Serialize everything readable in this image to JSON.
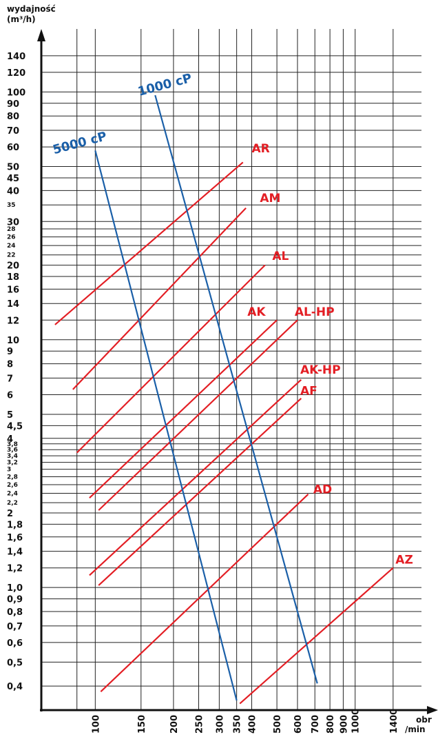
{
  "chart_data": {
    "type": "line",
    "ylabel_line1": "wydajność",
    "ylabel_line2": "(m³/h)",
    "xlabel_line1": "obr",
    "xlabel_line2": "/min",
    "y_scale": "log",
    "x_scale": "log",
    "grid": true,
    "y_ticks": [
      {
        "value": 0.4,
        "label": "0,4"
      },
      {
        "value": 0.5,
        "label": "0,5"
      },
      {
        "value": 0.6,
        "label": "0,6"
      },
      {
        "value": 0.7,
        "label": "0,7"
      },
      {
        "value": 0.8,
        "label": "0,8"
      },
      {
        "value": 0.9,
        "label": "0,9"
      },
      {
        "value": 1.0,
        "label": "1,0"
      },
      {
        "value": 1.2,
        "label": "1,2"
      },
      {
        "value": 1.4,
        "label": "1,4"
      },
      {
        "value": 1.6,
        "label": "1,6"
      },
      {
        "value": 1.8,
        "label": "1,8"
      },
      {
        "value": 2,
        "label": "2"
      },
      {
        "value": 2.2,
        "label": "2,2"
      },
      {
        "value": 2.4,
        "label": "2,4"
      },
      {
        "value": 2.6,
        "label": "2,6"
      },
      {
        "value": 2.8,
        "label": "2,8"
      },
      {
        "value": 3,
        "label": "3"
      },
      {
        "value": 3.2,
        "label": "3,2"
      },
      {
        "value": 3.4,
        "label": "3,4"
      },
      {
        "value": 3.6,
        "label": "3,6"
      },
      {
        "value": 3.8,
        "label": "3,8"
      },
      {
        "value": 4,
        "label": "4"
      },
      {
        "value": 4.5,
        "label": "4,5"
      },
      {
        "value": 5,
        "label": "5"
      },
      {
        "value": 6,
        "label": "6"
      },
      {
        "value": 7,
        "label": "7"
      },
      {
        "value": 8,
        "label": "8"
      },
      {
        "value": 9,
        "label": "9"
      },
      {
        "value": 10,
        "label": "10"
      },
      {
        "value": 12,
        "label": "12"
      },
      {
        "value": 14,
        "label": "14"
      },
      {
        "value": 16,
        "label": "16"
      },
      {
        "value": 18,
        "label": "18"
      },
      {
        "value": 20,
        "label": "20"
      },
      {
        "value": 22,
        "label": "22"
      },
      {
        "value": 24,
        "label": "24"
      },
      {
        "value": 26,
        "label": "26"
      },
      {
        "value": 28,
        "label": "28"
      },
      {
        "value": 30,
        "label": "30"
      },
      {
        "value": 35,
        "label": "35"
      },
      {
        "value": 40,
        "label": "40"
      },
      {
        "value": 45,
        "label": "45"
      },
      {
        "value": 50,
        "label": "50"
      },
      {
        "value": 60,
        "label": "60"
      },
      {
        "value": 70,
        "label": "70"
      },
      {
        "value": 80,
        "label": "80"
      },
      {
        "value": 90,
        "label": "90"
      },
      {
        "value": 100,
        "label": "100"
      },
      {
        "value": 120,
        "label": "120"
      },
      {
        "value": 140,
        "label": "140"
      }
    ],
    "x_ticks": [
      {
        "value": 100,
        "label": "100"
      },
      {
        "value": 150,
        "label": "150"
      },
      {
        "value": 200,
        "label": "200"
      },
      {
        "value": 250,
        "label": "250"
      },
      {
        "value": 300,
        "label": "300"
      },
      {
        "value": 350,
        "label": "350"
      },
      {
        "value": 400,
        "label": "400"
      },
      {
        "value": 500,
        "label": "500"
      },
      {
        "value": 600,
        "label": "600"
      },
      {
        "value": 700,
        "label": "700"
      },
      {
        "value": 800,
        "label": "800"
      },
      {
        "value": 900,
        "label": "900"
      },
      {
        "value": 1000,
        "label": "1000"
      },
      {
        "value": 1400,
        "label": "1400"
      }
    ],
    "x_extra_gridlines": [
      85
    ],
    "ylim": [
      0.32,
      160
    ],
    "xlim": [
      62,
      1800
    ],
    "series": [
      {
        "name": "AR",
        "color": "#e31e24",
        "points": [
          [
            70,
            11.5
          ],
          [
            370,
            52
          ]
        ]
      },
      {
        "name": "AM",
        "color": "#e31e24",
        "points": [
          [
            82,
            6.3
          ],
          [
            380,
            34
          ]
        ]
      },
      {
        "name": "AL",
        "color": "#e31e24",
        "points": [
          [
            85,
            3.5
          ],
          [
            450,
            20
          ]
        ]
      },
      {
        "name": "AK",
        "color": "#e31e24",
        "points": [
          [
            95,
            2.3
          ],
          [
            500,
            12
          ]
        ]
      },
      {
        "name": "AL-HP",
        "color": "#e31e24",
        "points": [
          [
            103,
            2.05
          ],
          [
            600,
            12
          ]
        ]
      },
      {
        "name": "AK-HP",
        "color": "#e31e24",
        "points": [
          [
            95,
            1.12
          ],
          [
            620,
            6.9
          ]
        ]
      },
      {
        "name": "AF",
        "color": "#e31e24",
        "points": [
          [
            103,
            1.02
          ],
          [
            620,
            5.8
          ]
        ]
      },
      {
        "name": "AD",
        "color": "#e31e24",
        "points": [
          [
            105,
            0.38
          ],
          [
            660,
            2.38
          ]
        ]
      },
      {
        "name": "AZ",
        "color": "#e31e24",
        "points": [
          [
            360,
            0.34
          ],
          [
            1400,
            1.2
          ]
        ]
      },
      {
        "name": "5000 cP",
        "color": "#1a5fa8",
        "points": [
          [
            100,
            58
          ],
          [
            350,
            0.35
          ]
        ]
      },
      {
        "name": "1000 cP",
        "color": "#1a5fa8",
        "points": [
          [
            170,
            97
          ],
          [
            715,
            0.41
          ]
        ]
      }
    ],
    "labels": [
      {
        "text": "AR",
        "x": 400,
        "y": 57,
        "color": "#e31e24",
        "anchor": "start"
      },
      {
        "text": "AM",
        "x": 430,
        "y": 36,
        "color": "#e31e24",
        "anchor": "start"
      },
      {
        "text": "AL",
        "x": 480,
        "y": 21,
        "color": "#e31e24",
        "anchor": "start"
      },
      {
        "text": "AK",
        "x": 385,
        "y": 12.5,
        "color": "#e31e24",
        "anchor": "start"
      },
      {
        "text": "AL-HP",
        "x": 585,
        "y": 12.5,
        "color": "#e31e24",
        "anchor": "start"
      },
      {
        "text": "AK-HP",
        "x": 615,
        "y": 7.3,
        "color": "#e31e24",
        "anchor": "start"
      },
      {
        "text": "AF",
        "x": 615,
        "y": 6.0,
        "color": "#e31e24",
        "anchor": "start"
      },
      {
        "text": "AD",
        "x": 690,
        "y": 2.4,
        "color": "#e31e24",
        "anchor": "start"
      },
      {
        "text": "AZ",
        "x": 1430,
        "y": 1.25,
        "color": "#e31e24",
        "anchor": "start"
      },
      {
        "text": "5000 cP",
        "x": 88,
        "y": 60,
        "color": "#1a5fa8",
        "anchor": "middle",
        "rotate": -15
      },
      {
        "text": "1000 cP",
        "x": 187,
        "y": 103,
        "color": "#1a5fa8",
        "anchor": "middle",
        "rotate": -15
      }
    ]
  }
}
